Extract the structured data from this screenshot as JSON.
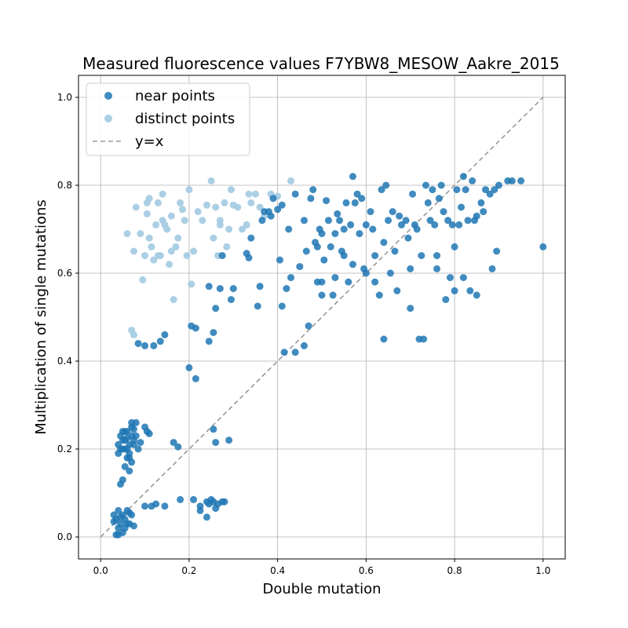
{
  "chart_data": {
    "type": "scatter",
    "title": "Measured fluorescence values F7YBW8_MESOW_Aakre_2015",
    "xlabel": "Double mutation",
    "ylabel": "Multiplication of single mutations",
    "xlim": [
      -0.05,
      1.05
    ],
    "ylim": [
      -0.05,
      1.05
    ],
    "x_ticks": [
      "0.0",
      "0.2",
      "0.4",
      "0.6",
      "0.8",
      "1.0"
    ],
    "y_ticks": [
      "0.0",
      "0.2",
      "0.4",
      "0.6",
      "0.8",
      "1.0"
    ],
    "grid": true,
    "legend_position": "upper-left",
    "colors": {
      "near": "#1f77b4",
      "distinct": "#a6cce3",
      "reference": "#999999"
    },
    "series": [
      {
        "name": "near points",
        "color": "#1f77b4",
        "points": [
          [
            0.03,
            0.05
          ],
          [
            0.035,
            0.04
          ],
          [
            0.04,
            0.06
          ],
          [
            0.045,
            0.03
          ],
          [
            0.05,
            0.05
          ],
          [
            0.055,
            0.04
          ],
          [
            0.06,
            0.06
          ],
          [
            0.065,
            0.03
          ],
          [
            0.07,
            0.05
          ],
          [
            0.04,
            0.02
          ],
          [
            0.05,
            0.01
          ],
          [
            0.06,
            0.03
          ],
          [
            0.035,
            0.005
          ],
          [
            0.04,
            0.005
          ],
          [
            0.075,
            0.025
          ],
          [
            0.055,
            0.02
          ],
          [
            0.045,
            0.045
          ],
          [
            0.065,
            0.055
          ],
          [
            0.03,
            0.035
          ],
          [
            0.1,
            0.07
          ],
          [
            0.115,
            0.07
          ],
          [
            0.125,
            0.075
          ],
          [
            0.145,
            0.07
          ],
          [
            0.18,
            0.085
          ],
          [
            0.21,
            0.085
          ],
          [
            0.225,
            0.07
          ],
          [
            0.225,
            0.06
          ],
          [
            0.24,
            0.08
          ],
          [
            0.245,
            0.075
          ],
          [
            0.25,
            0.085
          ],
          [
            0.255,
            0.08
          ],
          [
            0.26,
            0.065
          ],
          [
            0.265,
            0.075
          ],
          [
            0.275,
            0.08
          ],
          [
            0.28,
            0.08
          ],
          [
            0.24,
            0.045
          ],
          [
            0.04,
            0.21
          ],
          [
            0.045,
            0.23
          ],
          [
            0.05,
            0.22
          ],
          [
            0.055,
            0.24
          ],
          [
            0.06,
            0.2
          ],
          [
            0.065,
            0.19
          ],
          [
            0.07,
            0.25
          ],
          [
            0.075,
            0.21
          ],
          [
            0.08,
            0.23
          ],
          [
            0.05,
            0.2
          ],
          [
            0.06,
            0.18
          ],
          [
            0.055,
            0.16
          ],
          [
            0.065,
            0.15
          ],
          [
            0.05,
            0.13
          ],
          [
            0.045,
            0.12
          ],
          [
            0.055,
            0.22
          ],
          [
            0.045,
            0.2
          ],
          [
            0.06,
            0.24
          ],
          [
            0.07,
            0.26
          ],
          [
            0.075,
            0.245
          ],
          [
            0.08,
            0.26
          ],
          [
            0.085,
            0.2
          ],
          [
            0.09,
            0.215
          ],
          [
            0.1,
            0.25
          ],
          [
            0.105,
            0.24
          ],
          [
            0.11,
            0.235
          ],
          [
            0.065,
            0.21
          ],
          [
            0.07,
            0.23
          ],
          [
            0.06,
            0.225
          ],
          [
            0.055,
            0.2
          ],
          [
            0.05,
            0.24
          ],
          [
            0.075,
            0.22
          ],
          [
            0.065,
            0.18
          ],
          [
            0.04,
            0.19
          ],
          [
            0.07,
            0.17
          ],
          [
            0.165,
            0.215
          ],
          [
            0.175,
            0.205
          ],
          [
            0.255,
            0.245
          ],
          [
            0.26,
            0.215
          ],
          [
            0.29,
            0.22
          ],
          [
            0.2,
            0.385
          ],
          [
            0.215,
            0.36
          ],
          [
            0.085,
            0.44
          ],
          [
            0.1,
            0.435
          ],
          [
            0.12,
            0.435
          ],
          [
            0.135,
            0.445
          ],
          [
            0.145,
            0.46
          ],
          [
            0.205,
            0.48
          ],
          [
            0.215,
            0.475
          ],
          [
            0.245,
            0.445
          ],
          [
            0.255,
            0.465
          ],
          [
            0.245,
            0.57
          ],
          [
            0.26,
            0.52
          ],
          [
            0.27,
            0.565
          ],
          [
            0.275,
            0.64
          ],
          [
            0.295,
            0.54
          ],
          [
            0.3,
            0.565
          ],
          [
            0.33,
            0.645
          ],
          [
            0.335,
            0.635
          ],
          [
            0.34,
            0.68
          ],
          [
            0.355,
            0.525
          ],
          [
            0.36,
            0.57
          ],
          [
            0.365,
            0.72
          ],
          [
            0.37,
            0.74
          ],
          [
            0.38,
            0.74
          ],
          [
            0.385,
            0.73
          ],
          [
            0.39,
            0.77
          ],
          [
            0.4,
            0.745
          ],
          [
            0.405,
            0.63
          ],
          [
            0.41,
            0.525
          ],
          [
            0.41,
            0.755
          ],
          [
            0.415,
            0.42
          ],
          [
            0.42,
            0.565
          ],
          [
            0.425,
            0.7
          ],
          [
            0.43,
            0.59
          ],
          [
            0.44,
            0.42
          ],
          [
            0.44,
            0.78
          ],
          [
            0.45,
            0.615
          ],
          [
            0.46,
            0.435
          ],
          [
            0.465,
            0.65
          ],
          [
            0.475,
            0.77
          ],
          [
            0.48,
            0.79
          ],
          [
            0.485,
            0.67
          ],
          [
            0.49,
            0.66
          ],
          [
            0.49,
            0.58
          ],
          [
            0.495,
            0.7
          ],
          [
            0.5,
            0.58
          ],
          [
            0.505,
            0.63
          ],
          [
            0.51,
            0.765
          ],
          [
            0.515,
            0.72
          ],
          [
            0.52,
            0.66
          ],
          [
            0.525,
            0.55
          ],
          [
            0.53,
            0.69
          ],
          [
            0.535,
            0.735
          ],
          [
            0.54,
            0.72
          ],
          [
            0.545,
            0.65
          ],
          [
            0.55,
            0.7
          ],
          [
            0.555,
            0.76
          ],
          [
            0.56,
            0.58
          ],
          [
            0.565,
            0.71
          ],
          [
            0.57,
            0.82
          ],
          [
            0.575,
            0.76
          ],
          [
            0.58,
            0.78
          ],
          [
            0.585,
            0.69
          ],
          [
            0.59,
            0.77
          ],
          [
            0.595,
            0.61
          ],
          [
            0.6,
            0.6
          ],
          [
            0.61,
            0.74
          ],
          [
            0.615,
            0.7
          ],
          [
            0.62,
            0.64
          ],
          [
            0.63,
            0.55
          ],
          [
            0.635,
            0.79
          ],
          [
            0.64,
            0.45
          ],
          [
            0.645,
            0.8
          ],
          [
            0.65,
            0.72
          ],
          [
            0.655,
            0.6
          ],
          [
            0.66,
            0.74
          ],
          [
            0.665,
            0.65
          ],
          [
            0.67,
            0.56
          ],
          [
            0.675,
            0.73
          ],
          [
            0.68,
            0.71
          ],
          [
            0.69,
            0.72
          ],
          [
            0.695,
            0.68
          ],
          [
            0.7,
            0.52
          ],
          [
            0.705,
            0.78
          ],
          [
            0.71,
            0.71
          ],
          [
            0.715,
            0.7
          ],
          [
            0.72,
            0.45
          ],
          [
            0.725,
            0.64
          ],
          [
            0.73,
            0.45
          ],
          [
            0.735,
            0.8
          ],
          [
            0.74,
            0.76
          ],
          [
            0.745,
            0.72
          ],
          [
            0.75,
            0.79
          ],
          [
            0.755,
            0.71
          ],
          [
            0.76,
            0.64
          ],
          [
            0.765,
            0.77
          ],
          [
            0.77,
            0.8
          ],
          [
            0.775,
            0.74
          ],
          [
            0.78,
            0.54
          ],
          [
            0.785,
            0.72
          ],
          [
            0.79,
            0.59
          ],
          [
            0.795,
            0.71
          ],
          [
            0.8,
            0.66
          ],
          [
            0.805,
            0.79
          ],
          [
            0.81,
            0.71
          ],
          [
            0.815,
            0.75
          ],
          [
            0.82,
            0.82
          ],
          [
            0.825,
            0.79
          ],
          [
            0.83,
            0.72
          ],
          [
            0.835,
            0.56
          ],
          [
            0.84,
            0.81
          ],
          [
            0.845,
            0.72
          ],
          [
            0.85,
            0.73
          ],
          [
            0.86,
            0.76
          ],
          [
            0.865,
            0.74
          ],
          [
            0.87,
            0.79
          ],
          [
            0.88,
            0.78
          ],
          [
            0.885,
            0.61
          ],
          [
            0.89,
            0.79
          ],
          [
            0.895,
            0.65
          ],
          [
            0.9,
            0.8
          ],
          [
            0.92,
            0.81
          ],
          [
            0.93,
            0.81
          ],
          [
            0.95,
            0.81
          ],
          [
            1.0,
            0.66
          ],
          [
            0.8,
            0.56
          ],
          [
            0.82,
            0.59
          ],
          [
            0.85,
            0.55
          ],
          [
            0.76,
            0.61
          ],
          [
            0.7,
            0.61
          ],
          [
            0.64,
            0.67
          ],
          [
            0.6,
            0.71
          ],
          [
            0.55,
            0.64
          ],
          [
            0.5,
            0.69
          ],
          [
            0.46,
            0.72
          ],
          [
            0.47,
            0.48
          ],
          [
            0.5,
            0.55
          ],
          [
            0.53,
            0.59
          ],
          [
            0.57,
            0.62
          ],
          [
            0.62,
            0.58
          ]
        ]
      },
      {
        "name": "distinct points",
        "color": "#a6cce3",
        "points": [
          [
            0.06,
            0.69
          ],
          [
            0.075,
            0.65
          ],
          [
            0.08,
            0.75
          ],
          [
            0.09,
            0.69
          ],
          [
            0.095,
            0.585
          ],
          [
            0.1,
            0.64
          ],
          [
            0.105,
            0.735
          ],
          [
            0.105,
            0.76
          ],
          [
            0.11,
            0.68
          ],
          [
            0.11,
            0.77
          ],
          [
            0.115,
            0.66
          ],
          [
            0.12,
            0.63
          ],
          [
            0.125,
            0.71
          ],
          [
            0.13,
            0.76
          ],
          [
            0.135,
            0.64
          ],
          [
            0.14,
            0.78
          ],
          [
            0.145,
            0.71
          ],
          [
            0.15,
            0.7
          ],
          [
            0.155,
            0.62
          ],
          [
            0.16,
            0.73
          ],
          [
            0.165,
            0.54
          ],
          [
            0.17,
            0.66
          ],
          [
            0.175,
            0.68
          ],
          [
            0.18,
            0.76
          ],
          [
            0.185,
            0.745
          ],
          [
            0.19,
            0.72
          ],
          [
            0.195,
            0.64
          ],
          [
            0.2,
            0.79
          ],
          [
            0.205,
            0.575
          ],
          [
            0.21,
            0.65
          ],
          [
            0.22,
            0.74
          ],
          [
            0.23,
            0.72
          ],
          [
            0.24,
            0.755
          ],
          [
            0.25,
            0.81
          ],
          [
            0.255,
            0.68
          ],
          [
            0.26,
            0.75
          ],
          [
            0.265,
            0.64
          ],
          [
            0.27,
            0.72
          ],
          [
            0.28,
            0.76
          ],
          [
            0.285,
            0.66
          ],
          [
            0.29,
            0.7
          ],
          [
            0.295,
            0.79
          ],
          [
            0.3,
            0.755
          ],
          [
            0.31,
            0.75
          ],
          [
            0.32,
            0.7
          ],
          [
            0.33,
            0.71
          ],
          [
            0.335,
            0.78
          ],
          [
            0.34,
            0.76
          ],
          [
            0.35,
            0.78
          ],
          [
            0.36,
            0.75
          ],
          [
            0.37,
            0.73
          ],
          [
            0.385,
            0.78
          ],
          [
            0.4,
            0.775
          ],
          [
            0.43,
            0.81
          ],
          [
            0.07,
            0.47
          ],
          [
            0.075,
            0.46
          ],
          [
            0.13,
            0.64
          ],
          [
            0.16,
            0.65
          ],
          [
            0.27,
            0.71
          ],
          [
            0.14,
            0.72
          ]
        ]
      }
    ],
    "reference_line": {
      "name": "y=x",
      "x": [
        0,
        1
      ],
      "y": [
        0,
        1
      ]
    }
  }
}
